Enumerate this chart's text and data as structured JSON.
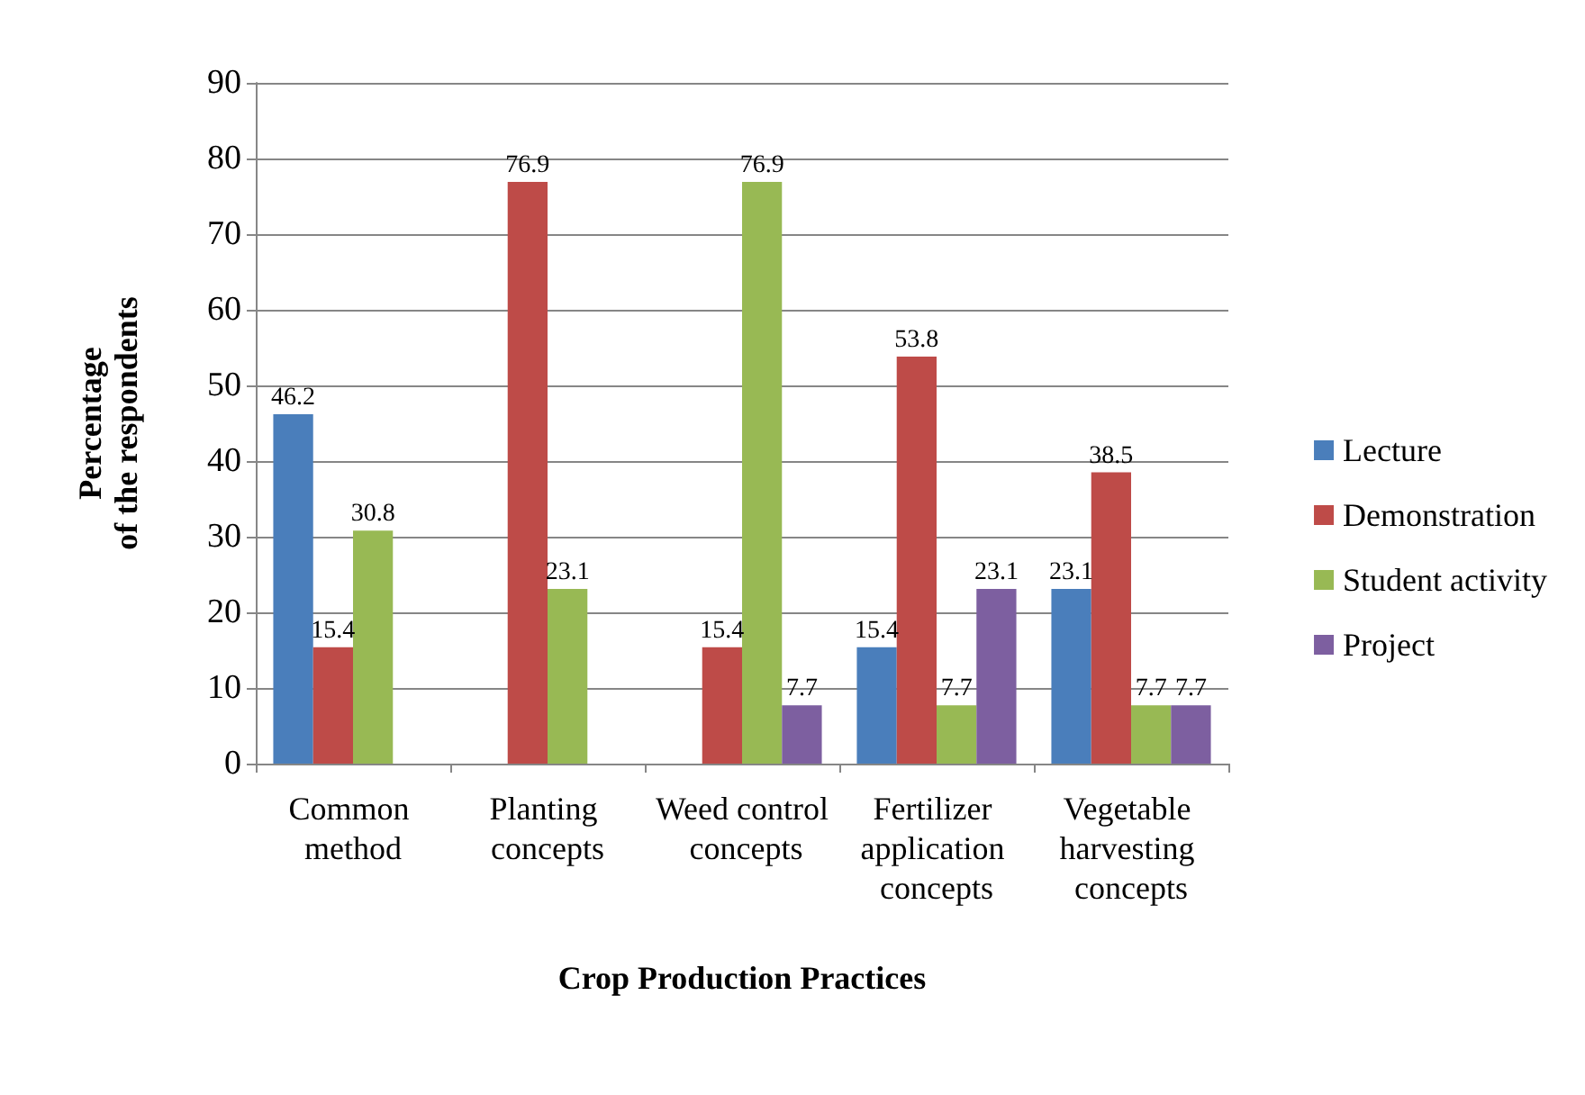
{
  "chart_data": {
    "type": "bar",
    "xlabel": "Crop Production Practices",
    "ylabel": "Percentage\nof the respondents",
    "categories": [
      "Common method",
      "Planting concepts",
      "Weed control concepts",
      "Fertilizer application concepts",
      "Vegetable harvesting concepts"
    ],
    "series": [
      {
        "name": "Lecture",
        "color": "#4a7ebb",
        "values": [
          46.2,
          null,
          null,
          15.4,
          23.1
        ]
      },
      {
        "name": "Demonstration",
        "color": "#be4b48",
        "values": [
          15.4,
          76.9,
          15.4,
          53.8,
          38.5
        ]
      },
      {
        "name": "Student activity",
        "color": "#98b954",
        "values": [
          30.8,
          23.1,
          76.9,
          7.7,
          7.7
        ]
      },
      {
        "name": "Project",
        "color": "#7d5fa0",
        "values": [
          null,
          null,
          7.7,
          23.1,
          7.7
        ]
      }
    ],
    "ylim": [
      0,
      90
    ],
    "yticks": [
      0,
      10,
      20,
      30,
      40,
      50,
      60,
      70,
      80,
      90
    ],
    "grid": "y",
    "legend": "right",
    "data_labels": true
  }
}
